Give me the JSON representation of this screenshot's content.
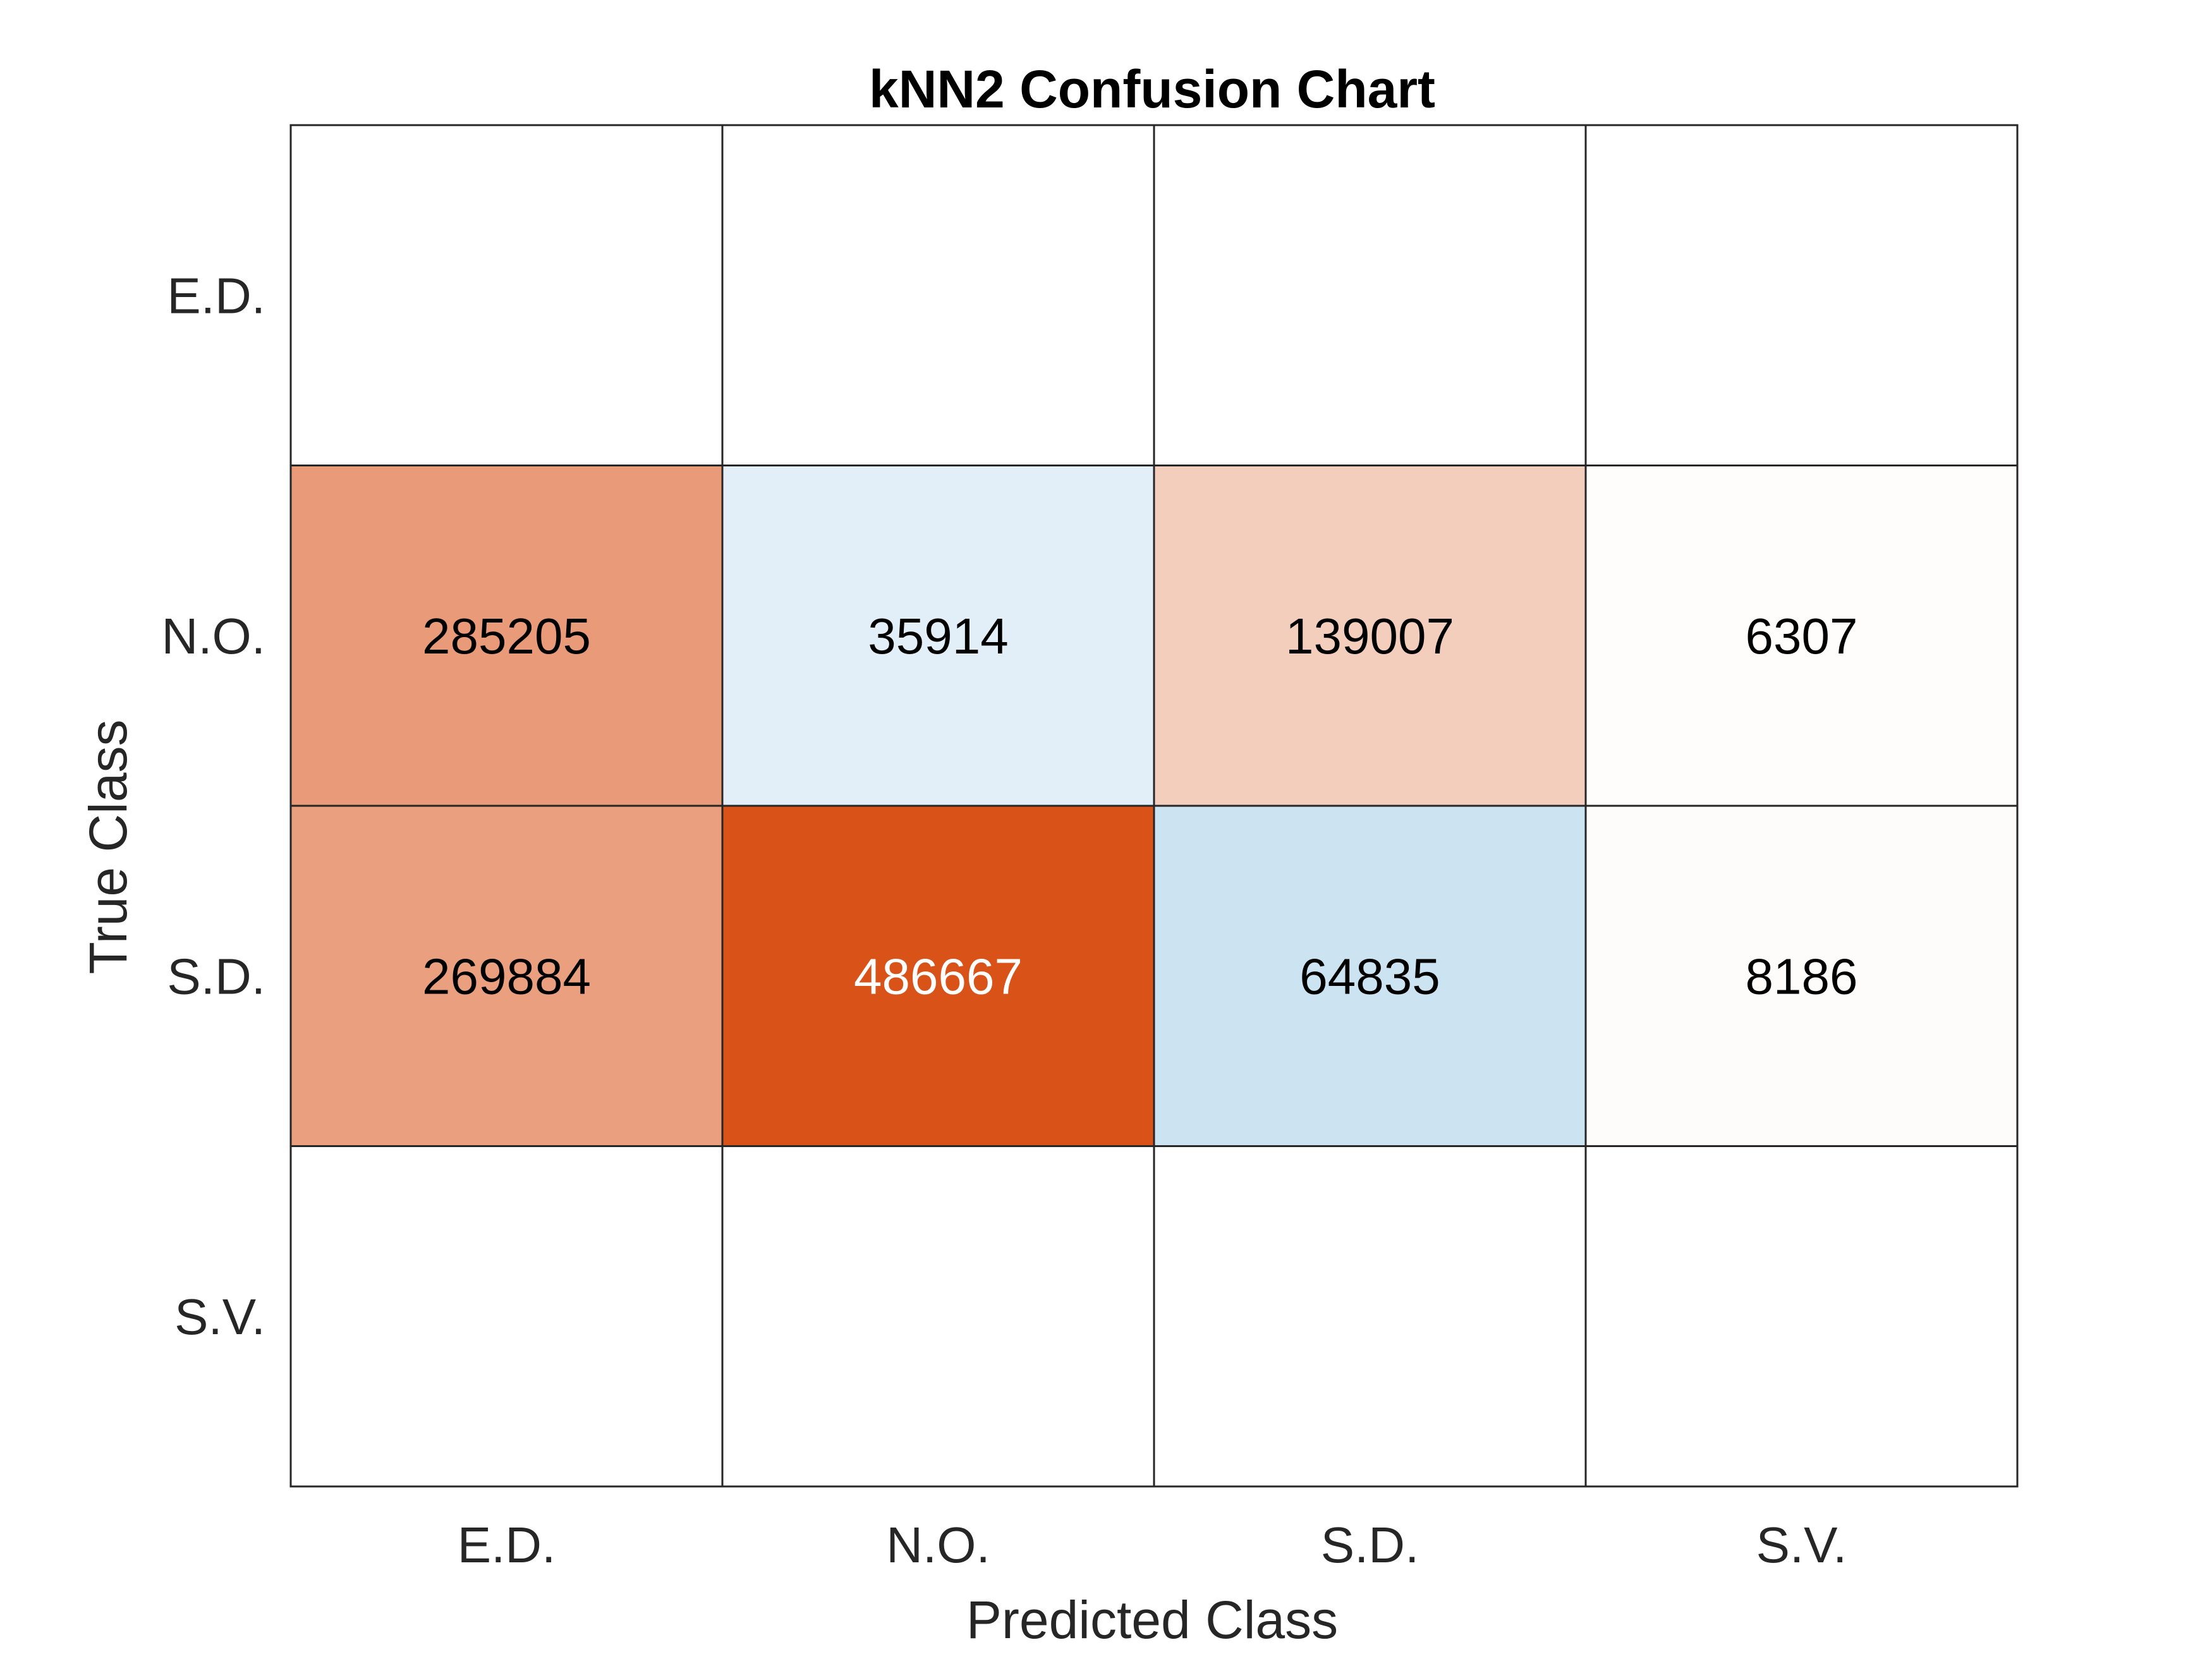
{
  "chart_data": {
    "type": "heatmap",
    "title": "kNN2 Confusion Chart",
    "xlabel": "Predicted Class",
    "ylabel": "True Class",
    "x_categories": [
      "E.D.",
      "N.O.",
      "S.D.",
      "S.V."
    ],
    "y_categories": [
      "E.D.",
      "N.O.",
      "S.D.",
      "S.V."
    ],
    "values": [
      [
        null,
        null,
        null,
        null
      ],
      [
        285205,
        35914,
        139007,
        6307
      ],
      [
        269884,
        486667,
        64835,
        8186
      ],
      [
        null,
        null,
        null,
        null
      ]
    ],
    "diagonal_color": "#0072BD",
    "off_diagonal_color": "#D95319",
    "grid": true
  }
}
